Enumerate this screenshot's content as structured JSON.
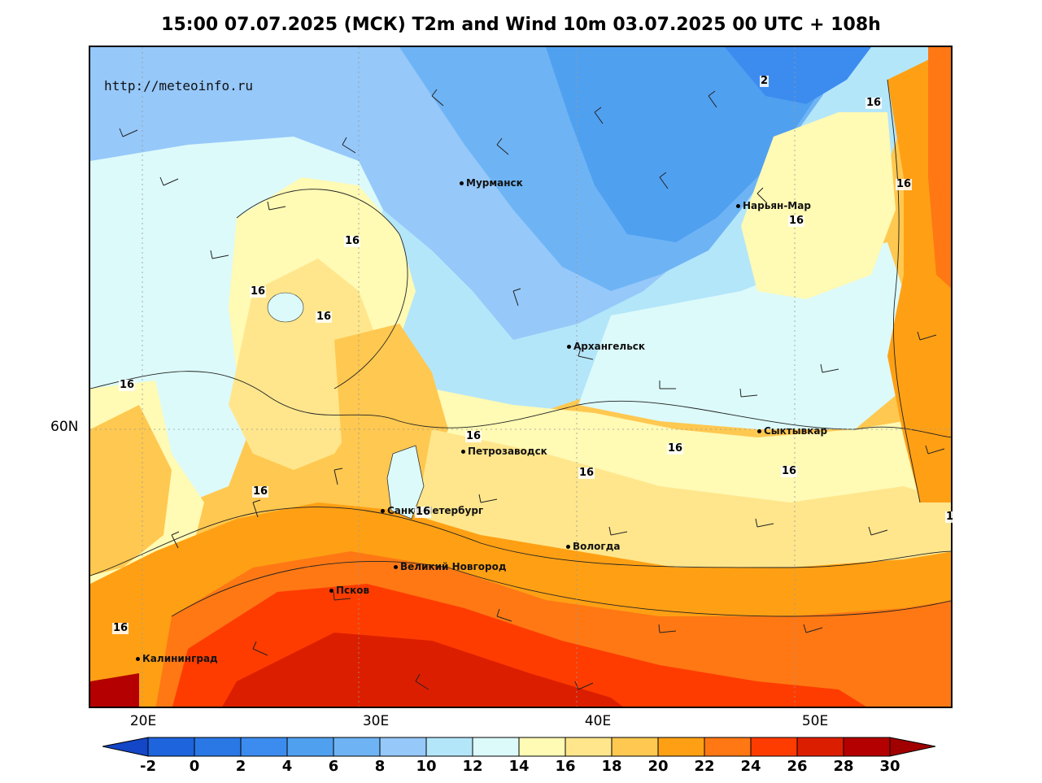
{
  "title": "15:00 07.07.2025 (МСК) T2m and Wind 10m 03.07.2025 00 UTC + 108h",
  "url_label": "http://meteoinfo.ru",
  "lon_labels": [
    "20E",
    "30E",
    "40E",
    "50E"
  ],
  "lat_labels": [
    "60N"
  ],
  "cities": [
    {
      "name": "Мурманск"
    },
    {
      "name": "Нарьян-Мар"
    },
    {
      "name": "Архангельск"
    },
    {
      "name": "Сыктывкар"
    },
    {
      "name": "Петрозаводск"
    },
    {
      "name": "Санкт-Петербург"
    },
    {
      "name": "Вологда"
    },
    {
      "name": "Великий Новгород"
    },
    {
      "name": "Псков"
    },
    {
      "name": "Калининград"
    }
  ],
  "contour_labels": [
    "2",
    "16",
    "16",
    "16",
    "16",
    "16",
    "16",
    "16",
    "16",
    "16",
    "16",
    "16",
    "16",
    "16",
    "16",
    "16",
    "16",
    "1"
  ],
  "colorbar": {
    "ticks": [
      "-2",
      "0",
      "2",
      "4",
      "6",
      "8",
      "10",
      "12",
      "14",
      "16",
      "18",
      "20",
      "22",
      "24",
      "26",
      "28",
      "30"
    ],
    "colors": [
      "#1e64dc",
      "#2a78e6",
      "#3c8cf0",
      "#50a0f0",
      "#6eb4f5",
      "#96c8fa",
      "#b4e6fa",
      "#dcfafa",
      "#fffab4",
      "#ffe68c",
      "#ffc850",
      "#ffa014",
      "#ff7814",
      "#ff3c00",
      "#dc1e00",
      "#b40000"
    ],
    "low_color": "#1446c8",
    "high_color": "#a00000"
  }
}
